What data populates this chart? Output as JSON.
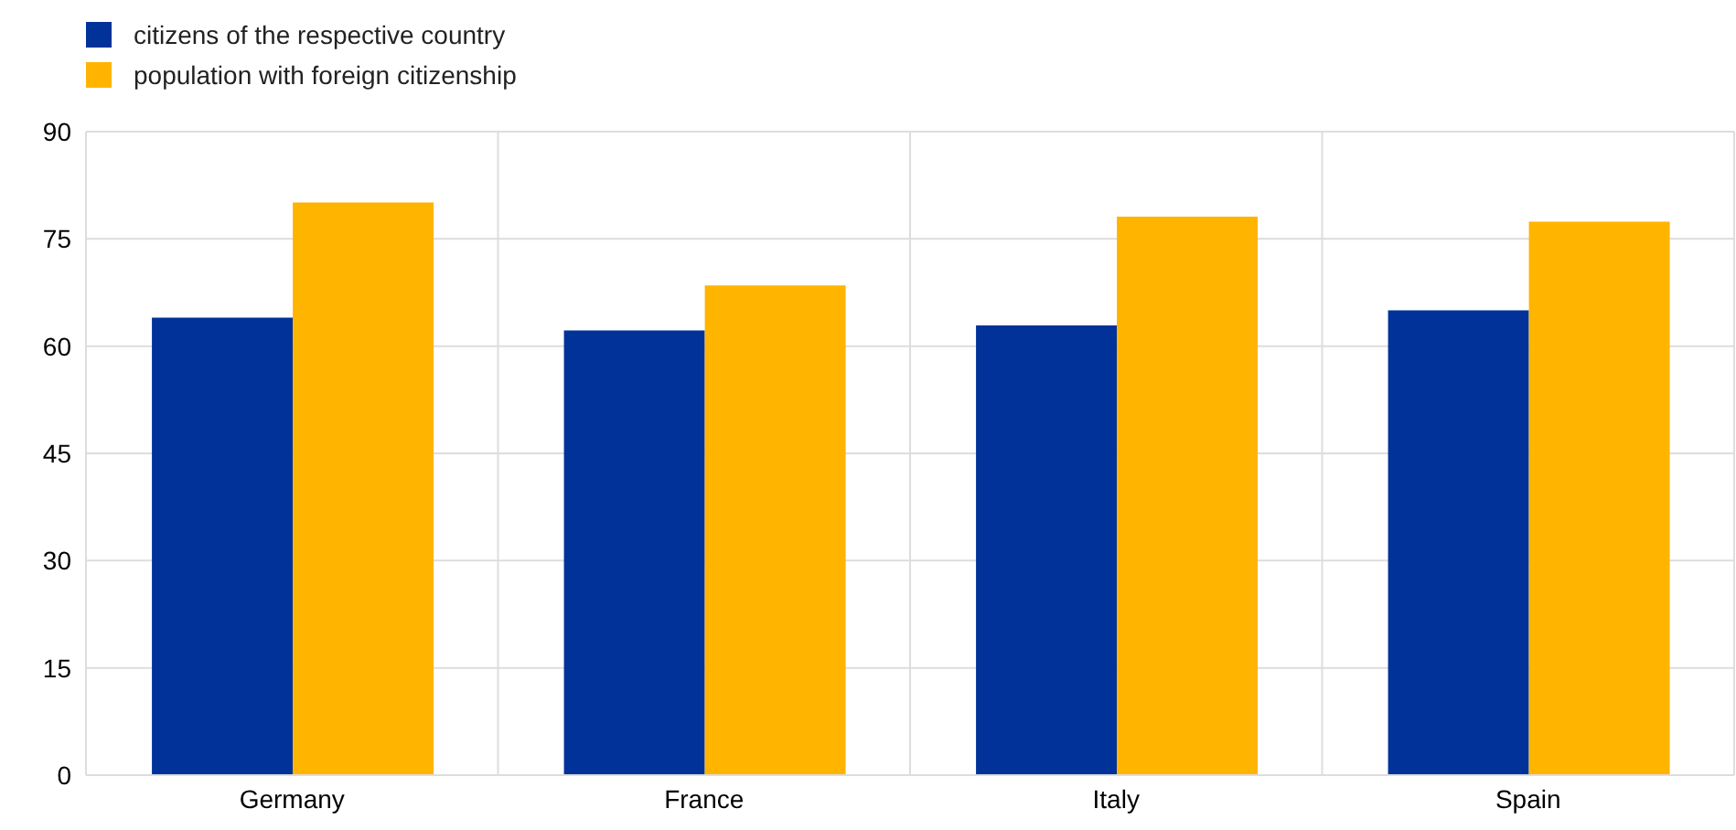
{
  "chart_data": {
    "type": "bar",
    "categories": [
      "Germany",
      "France",
      "Italy",
      "Spain"
    ],
    "series": [
      {
        "name": "citizens of the respective country",
        "color": "#003299",
        "values": [
          64.0,
          62.2,
          62.9,
          65.0
        ]
      },
      {
        "name": "population with foreign citizenship",
        "color": "#ffb400",
        "values": [
          80.1,
          68.5,
          78.1,
          77.4
        ]
      }
    ],
    "ylim": [
      0,
      90
    ],
    "yticks": [
      0,
      15,
      30,
      45,
      60,
      75,
      90
    ],
    "grid": true,
    "legend": "top left"
  }
}
